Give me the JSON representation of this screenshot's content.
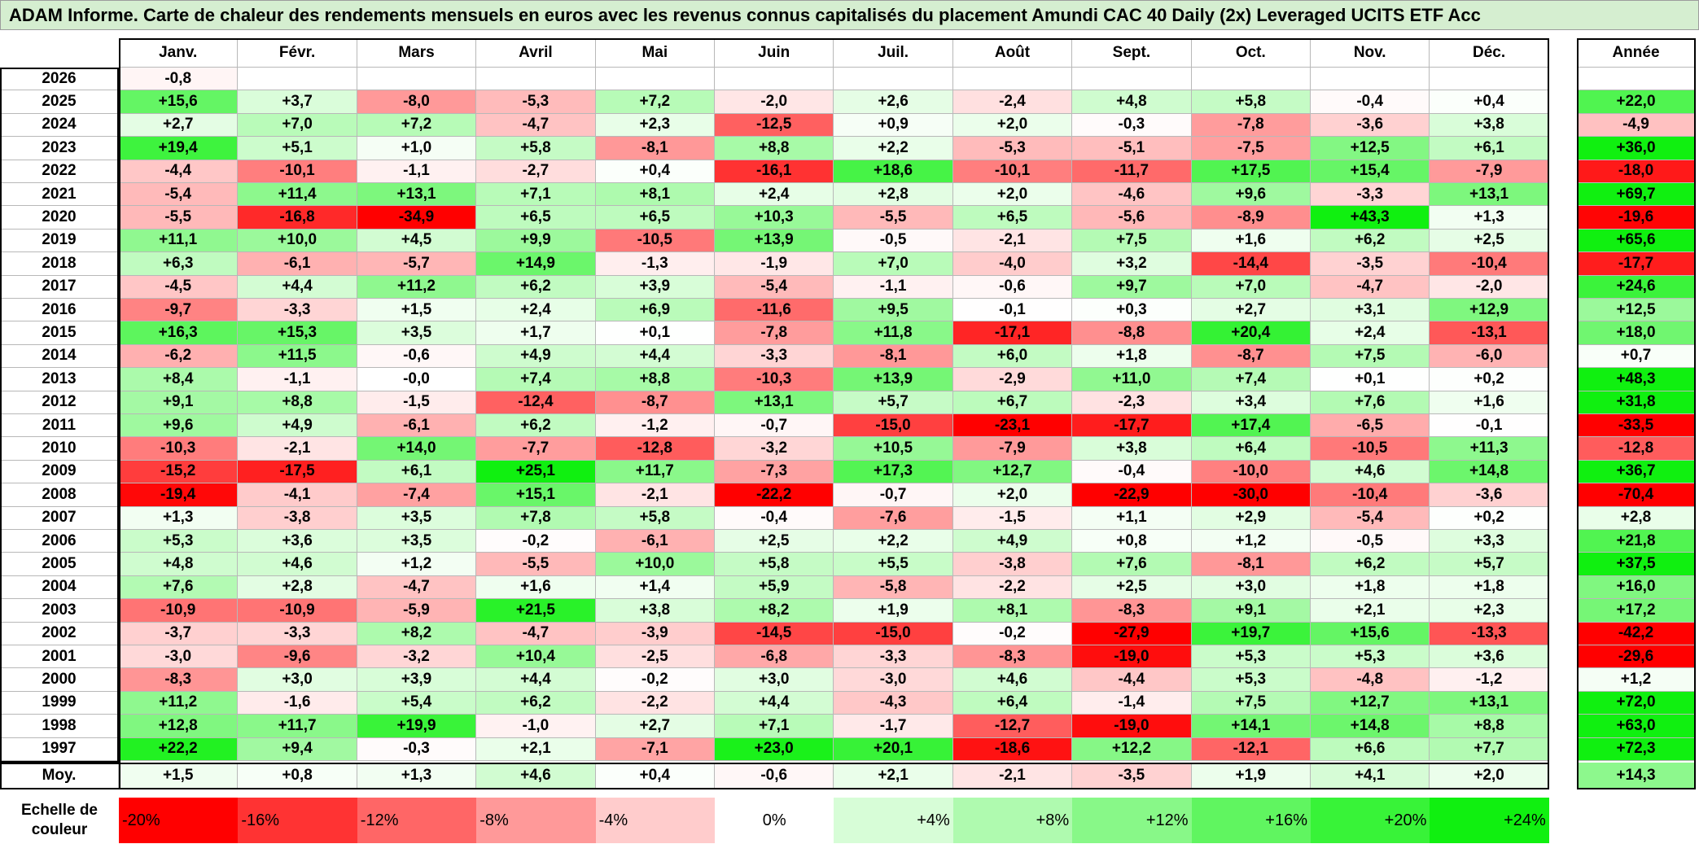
{
  "title": "ADAM Informe. Carte de chaleur des rendements mensuels en euros avec les revenus connus capitalisés du placement Amundi CAC 40 Daily (2x) Leveraged UCITS ETF Acc",
  "table": {
    "months": [
      "Janv.",
      "Févr.",
      "Mars",
      "Avril",
      "Mai",
      "Juin",
      "Juil.",
      "Août",
      "Sept.",
      "Oct.",
      "Nov.",
      "Déc."
    ],
    "annual_header": "Année",
    "rows": [
      {
        "year": "2026",
        "months": [
          "-0,8",
          null,
          null,
          null,
          null,
          null,
          null,
          null,
          null,
          null,
          null,
          null
        ],
        "annual": null
      },
      {
        "year": "2025",
        "months": [
          "+15,6",
          "+3,7",
          "-8,0",
          "-5,3",
          "+7,2",
          "-2,0",
          "+2,6",
          "-2,4",
          "+4,8",
          "+5,8",
          "-0,4",
          "+0,4"
        ],
        "annual": "+22,0"
      },
      {
        "year": "2024",
        "months": [
          "+2,7",
          "+7,0",
          "+7,2",
          "-4,7",
          "+2,3",
          "-12,5",
          "+0,9",
          "+2,0",
          "-0,3",
          "-7,8",
          "-3,6",
          "+3,8"
        ],
        "annual": "-4,9"
      },
      {
        "year": "2023",
        "months": [
          "+19,4",
          "+5,1",
          "+1,0",
          "+5,8",
          "-8,1",
          "+8,8",
          "+2,2",
          "-5,3",
          "-5,1",
          "-7,5",
          "+12,5",
          "+6,1"
        ],
        "annual": "+36,0"
      },
      {
        "year": "2022",
        "months": [
          "-4,4",
          "-10,1",
          "-1,1",
          "-2,7",
          "+0,4",
          "-16,1",
          "+18,6",
          "-10,1",
          "-11,7",
          "+17,5",
          "+15,4",
          "-7,9"
        ],
        "annual": "-18,0"
      },
      {
        "year": "2021",
        "months": [
          "-5,4",
          "+11,4",
          "+13,1",
          "+7,1",
          "+8,1",
          "+2,4",
          "+2,8",
          "+2,0",
          "-4,6",
          "+9,6",
          "-3,3",
          "+13,1"
        ],
        "annual": "+69,7"
      },
      {
        "year": "2020",
        "months": [
          "-5,5",
          "-16,8",
          "-34,9",
          "+6,5",
          "+6,5",
          "+10,3",
          "-5,5",
          "+6,5",
          "-5,6",
          "-8,9",
          "+43,3",
          "+1,3"
        ],
        "annual": "-19,6"
      },
      {
        "year": "2019",
        "months": [
          "+11,1",
          "+10,0",
          "+4,5",
          "+9,9",
          "-10,5",
          "+13,9",
          "-0,5",
          "-2,1",
          "+7,5",
          "+1,6",
          "+6,2",
          "+2,5"
        ],
        "annual": "+65,6"
      },
      {
        "year": "2018",
        "months": [
          "+6,3",
          "-6,1",
          "-5,7",
          "+14,9",
          "-1,3",
          "-1,9",
          "+7,0",
          "-4,0",
          "+3,2",
          "-14,4",
          "-3,5",
          "-10,4"
        ],
        "annual": "-17,7"
      },
      {
        "year": "2017",
        "months": [
          "-4,5",
          "+4,4",
          "+11,2",
          "+6,2",
          "+3,9",
          "-5,4",
          "-1,1",
          "-0,6",
          "+9,7",
          "+7,0",
          "-4,7",
          "-2,0"
        ],
        "annual": "+24,6"
      },
      {
        "year": "2016",
        "months": [
          "-9,7",
          "-3,3",
          "+1,5",
          "+2,4",
          "+6,9",
          "-11,6",
          "+9,5",
          "-0,1",
          "+0,3",
          "+2,7",
          "+3,1",
          "+12,9"
        ],
        "annual": "+12,5"
      },
      {
        "year": "2015",
        "months": [
          "+16,3",
          "+15,3",
          "+3,5",
          "+1,7",
          "+0,1",
          "-7,8",
          "+11,8",
          "-17,1",
          "-8,8",
          "+20,4",
          "+2,4",
          "-13,1"
        ],
        "annual": "+18,0"
      },
      {
        "year": "2014",
        "months": [
          "-6,2",
          "+11,5",
          "-0,6",
          "+4,9",
          "+4,4",
          "-3,3",
          "-8,1",
          "+6,0",
          "+1,8",
          "-8,7",
          "+7,5",
          "-6,0"
        ],
        "annual": "+0,7"
      },
      {
        "year": "2013",
        "months": [
          "+8,4",
          "-1,1",
          "-0,0",
          "+7,4",
          "+8,8",
          "-10,3",
          "+13,9",
          "-2,9",
          "+11,0",
          "+7,4",
          "+0,1",
          "+0,2"
        ],
        "annual": "+48,3"
      },
      {
        "year": "2012",
        "months": [
          "+9,1",
          "+8,8",
          "-1,5",
          "-12,4",
          "-8,7",
          "+13,1",
          "+5,7",
          "+6,7",
          "-2,3",
          "+3,4",
          "+7,6",
          "+1,6"
        ],
        "annual": "+31,8"
      },
      {
        "year": "2011",
        "months": [
          "+9,6",
          "+4,9",
          "-6,1",
          "+6,2",
          "-1,2",
          "-0,7",
          "-15,0",
          "-23,1",
          "-17,7",
          "+17,4",
          "-6,5",
          "-0,1"
        ],
        "annual": "-33,5"
      },
      {
        "year": "2010",
        "months": [
          "-10,3",
          "-2,1",
          "+14,0",
          "-7,7",
          "-12,8",
          "-3,2",
          "+10,5",
          "-7,9",
          "+3,8",
          "+6,4",
          "-10,5",
          "+11,3"
        ],
        "annual": "-12,8"
      },
      {
        "year": "2009",
        "months": [
          "-15,2",
          "-17,5",
          "+6,1",
          "+25,1",
          "+11,7",
          "-7,3",
          "+17,3",
          "+12,7",
          "-0,4",
          "-10,0",
          "+4,6",
          "+14,8"
        ],
        "annual": "+36,7"
      },
      {
        "year": "2008",
        "months": [
          "-19,4",
          "-4,1",
          "-7,4",
          "+15,1",
          "-2,1",
          "-22,2",
          "-0,7",
          "+2,0",
          "-22,9",
          "-30,0",
          "-10,4",
          "-3,6"
        ],
        "annual": "-70,4"
      },
      {
        "year": "2007",
        "months": [
          "+1,3",
          "-3,8",
          "+3,5",
          "+7,8",
          "+5,8",
          "-0,4",
          "-7,6",
          "-1,5",
          "+1,1",
          "+2,9",
          "-5,4",
          "+0,2"
        ],
        "annual": "+2,8"
      },
      {
        "year": "2006",
        "months": [
          "+5,3",
          "+3,6",
          "+3,5",
          "-0,2",
          "-6,1",
          "+2,5",
          "+2,2",
          "+4,9",
          "+0,8",
          "+1,2",
          "-0,5",
          "+3,3"
        ],
        "annual": "+21,8"
      },
      {
        "year": "2005",
        "months": [
          "+4,8",
          "+4,6",
          "+1,2",
          "-5,5",
          "+10,0",
          "+5,8",
          "+5,5",
          "-3,8",
          "+7,6",
          "-8,1",
          "+6,2",
          "+5,7"
        ],
        "annual": "+37,5"
      },
      {
        "year": "2004",
        "months": [
          "+7,6",
          "+2,8",
          "-4,7",
          "+1,6",
          "+1,4",
          "+5,9",
          "-5,8",
          "-2,2",
          "+2,5",
          "+3,0",
          "+1,8",
          "+1,8"
        ],
        "annual": "+16,0"
      },
      {
        "year": "2003",
        "months": [
          "-10,9",
          "-10,9",
          "-5,9",
          "+21,5",
          "+3,8",
          "+8,2",
          "+1,9",
          "+8,1",
          "-8,3",
          "+9,1",
          "+2,1",
          "+2,3"
        ],
        "annual": "+17,2"
      },
      {
        "year": "2002",
        "months": [
          "-3,7",
          "-3,3",
          "+8,2",
          "-4,7",
          "-3,9",
          "-14,5",
          "-15,0",
          "-0,2",
          "-27,9",
          "+19,7",
          "+15,6",
          "-13,3"
        ],
        "annual": "-42,2"
      },
      {
        "year": "2001",
        "months": [
          "-3,0",
          "-9,6",
          "-3,2",
          "+10,4",
          "-2,5",
          "-6,8",
          "-3,3",
          "-8,3",
          "-19,0",
          "+5,3",
          "+5,3",
          "+3,6"
        ],
        "annual": "-29,6"
      },
      {
        "year": "2000",
        "months": [
          "-8,3",
          "+3,0",
          "+3,9",
          "+4,4",
          "-0,2",
          "+3,0",
          "-3,0",
          "+4,6",
          "-4,4",
          "+5,3",
          "-4,8",
          "-1,2"
        ],
        "annual": "+1,2"
      },
      {
        "year": "1999",
        "months": [
          "+11,2",
          "-1,6",
          "+5,4",
          "+6,2",
          "-2,2",
          "+4,4",
          "-4,3",
          "+6,4",
          "-1,4",
          "+7,5",
          "+12,7",
          "+13,1"
        ],
        "annual": "+72,0"
      },
      {
        "year": "1998",
        "months": [
          "+12,8",
          "+11,7",
          "+19,9",
          "-1,0",
          "+2,7",
          "+7,1",
          "-1,7",
          "-12,7",
          "-19,0",
          "+14,1",
          "+14,8",
          "+8,8"
        ],
        "annual": "+63,0"
      },
      {
        "year": "1997",
        "months": [
          "+22,2",
          "+9,4",
          "-0,3",
          "+2,1",
          "-7,1",
          "+23,0",
          "+20,1",
          "-18,6",
          "+12,2",
          "-12,1",
          "+6,6",
          "+7,7"
        ],
        "annual": "+72,3"
      }
    ],
    "average": {
      "label": "Moy.",
      "months": [
        "+1,5",
        "+0,8",
        "+1,3",
        "+4,6",
        "+0,4",
        "-0,6",
        "+2,1",
        "-2,1",
        "-3,5",
        "+1,9",
        "+4,1",
        "+2,0"
      ],
      "annual": "+14,3"
    }
  },
  "scale": {
    "label": "Echelle de couleur",
    "steps": [
      "-20%",
      "-16%",
      "-12%",
      "-8%",
      "-4%",
      "0%",
      "+4%",
      "+8%",
      "+12%",
      "+16%",
      "+20%",
      "+24%"
    ]
  }
}
